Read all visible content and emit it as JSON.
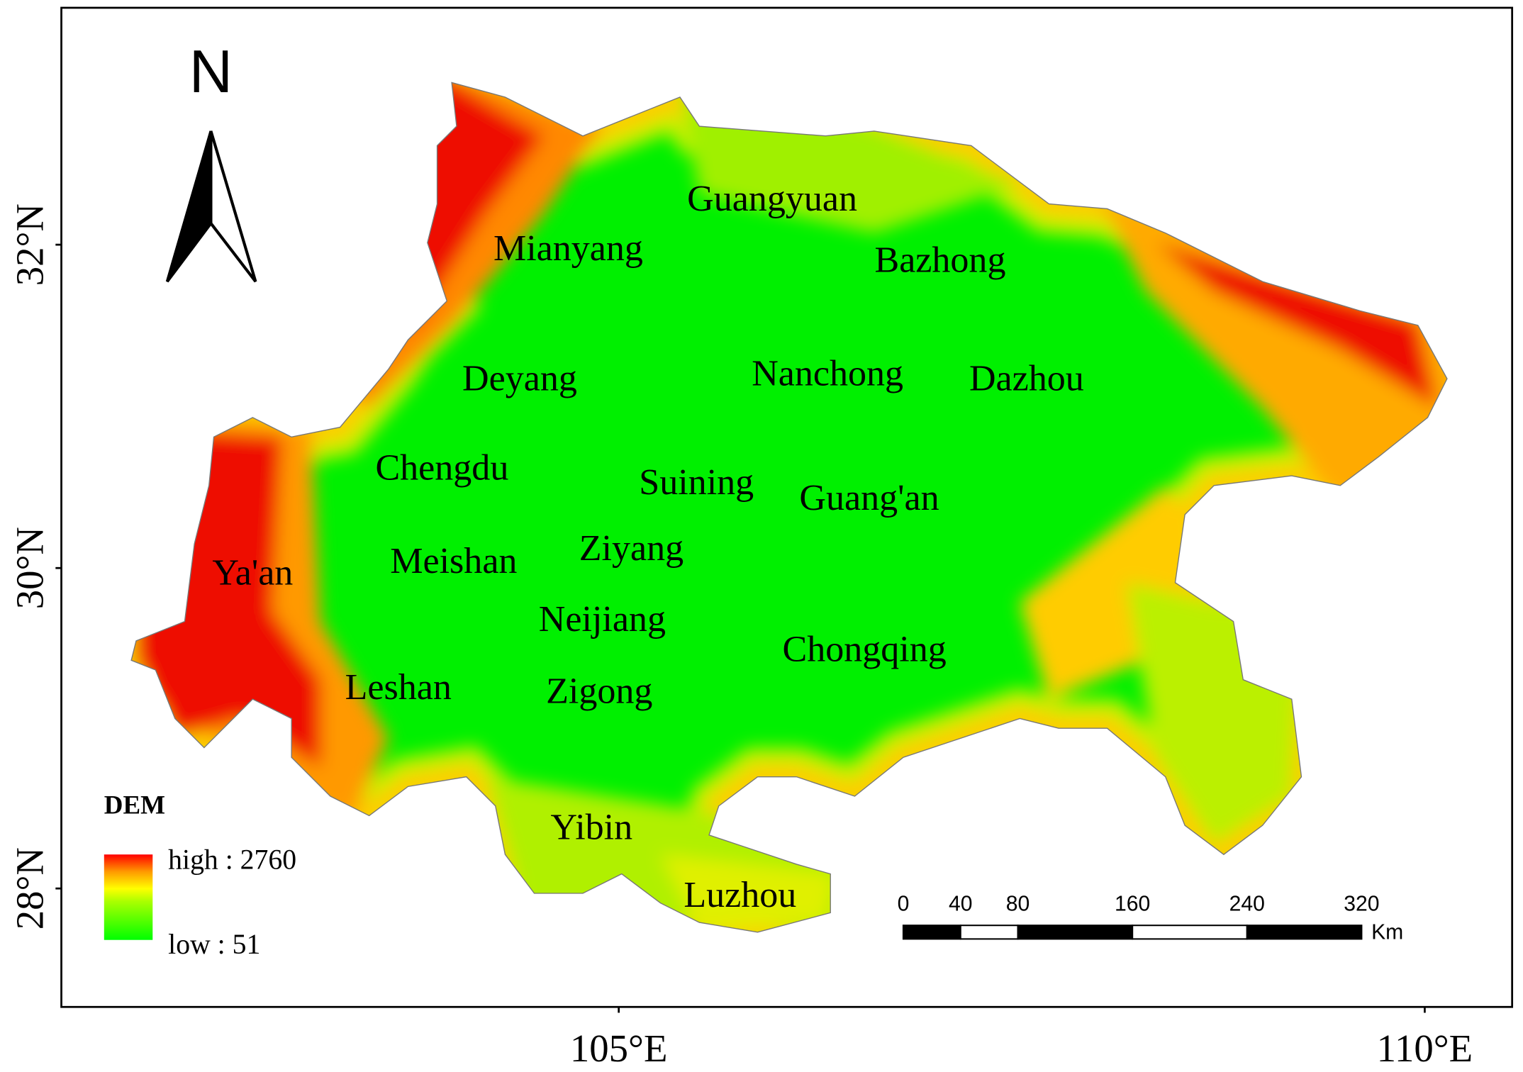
{
  "north": "N",
  "latitude_labels": [
    "32°N",
    "30°N",
    "28°N"
  ],
  "longitude_labels": [
    "105°E",
    "110°E"
  ],
  "cities": [
    "Guangyuan",
    "Mianyang",
    "Bazhong",
    "Deyang",
    "Nanchong",
    "Dazhou",
    "Chengdu",
    "Suining",
    "Guang'an",
    "Ziyang",
    "Ya'an",
    "Meishan",
    "Neijiang",
    "Chongqing",
    "Leshan",
    "Zigong",
    "Yibin",
    "Luzhou"
  ],
  "legend": {
    "title": "DEM",
    "high": "high : 2760",
    "low": "low : 51"
  },
  "scale_bar": {
    "ticks": [
      0,
      40,
      80,
      160,
      240,
      320
    ],
    "unit": "Km"
  }
}
